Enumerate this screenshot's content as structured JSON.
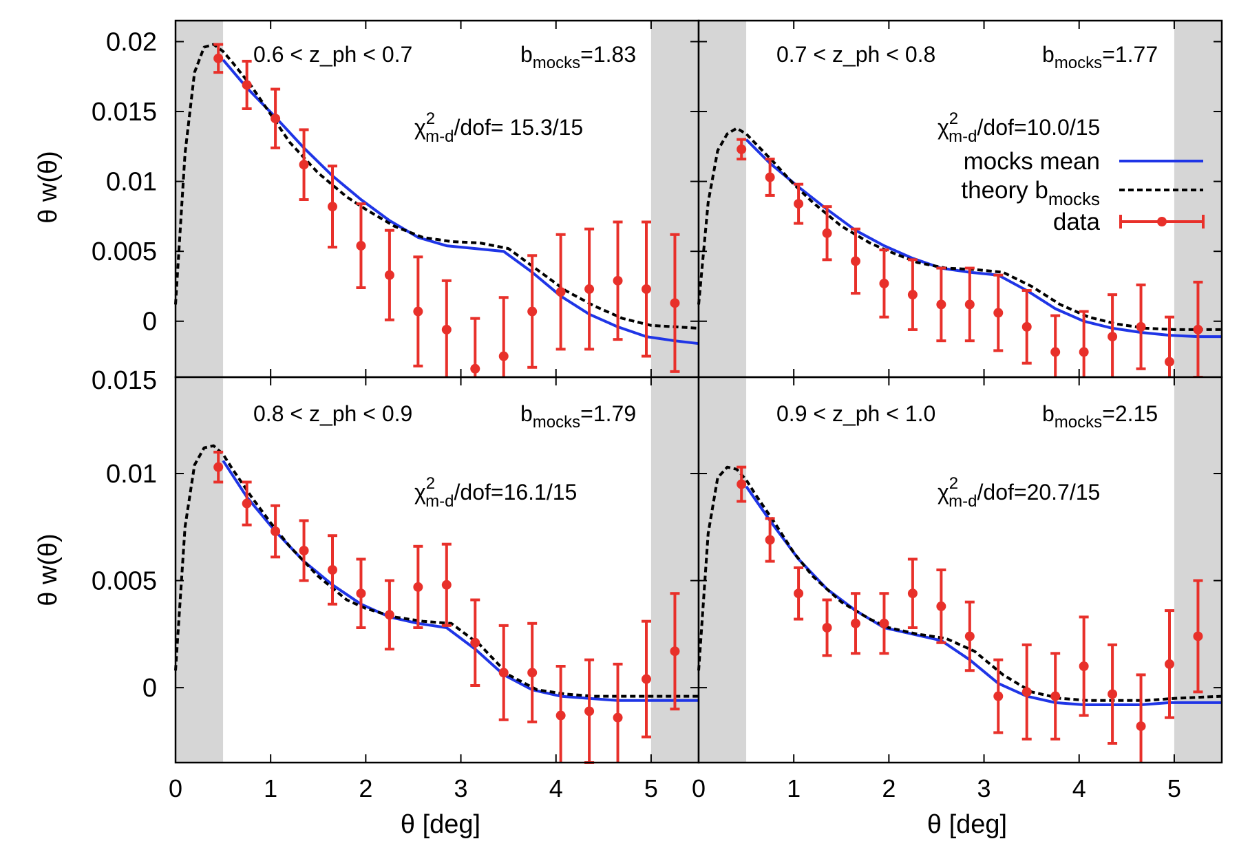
{
  "chart_data": [
    {
      "type": "line",
      "panel": "top-left",
      "redshift_bin": "0.6 < z_ph < 0.7",
      "annotations": {
        "bias_label": "b",
        "bias_sub": "mocks",
        "bias_value": "=1.83",
        "chi2_label": "χ",
        "chi2_sup": "2",
        "chi2_sub": "m-d",
        "chi2_value": "/dof= 15.3/15"
      },
      "xlim": [
        0,
        5.5
      ],
      "ylim": [
        -0.004,
        0.0215
      ],
      "x_ticks": [
        "0",
        "1",
        "2",
        "3",
        "4",
        "5"
      ],
      "y_ticks": [
        {
          "value": 0.02,
          "label": "0.02"
        },
        {
          "value": 0.015,
          "label": "0.015"
        },
        {
          "value": 0.01,
          "label": "0.01"
        },
        {
          "value": 0.005,
          "label": "0.005"
        },
        {
          "value": 0,
          "label": "0"
        }
      ],
      "shaded_regions": [
        [
          0,
          0.5
        ],
        [
          5,
          5.5
        ]
      ],
      "series": [
        {
          "name": "theory b_mocks",
          "style": "dashed-black",
          "x": [
            0.0,
            0.1,
            0.2,
            0.3,
            0.4,
            0.5,
            0.6,
            0.8,
            1.0,
            1.2,
            1.5,
            1.8,
            2.0,
            2.3,
            2.6,
            2.9,
            3.2,
            3.5,
            3.8,
            4.1,
            4.4,
            4.7,
            5.0,
            5.5
          ],
          "y": [
            0.0012,
            0.012,
            0.0178,
            0.0196,
            0.0198,
            0.0193,
            0.0185,
            0.0168,
            0.0148,
            0.0128,
            0.0106,
            0.0089,
            0.008,
            0.0068,
            0.006,
            0.0057,
            0.0056,
            0.0052,
            0.0037,
            0.0022,
            0.0011,
            0.0002,
            -0.0003,
            -0.0005
          ]
        },
        {
          "name": "mocks mean",
          "style": "solid-blue",
          "x": [
            0.5,
            0.75,
            1.05,
            1.35,
            1.65,
            1.95,
            2.25,
            2.55,
            2.85,
            3.15,
            3.45,
            3.75,
            4.05,
            4.35,
            4.65,
            4.95,
            5.25,
            5.5
          ],
          "y": [
            0.0187,
            0.0167,
            0.0146,
            0.0124,
            0.0104,
            0.0087,
            0.0072,
            0.006,
            0.0054,
            0.0052,
            0.005,
            0.0035,
            0.0018,
            0.0005,
            -0.0004,
            -0.0011,
            -0.0014,
            -0.0016
          ]
        },
        {
          "name": "data",
          "style": "red-points-errorbars",
          "x": [
            0.45,
            0.75,
            1.05,
            1.35,
            1.65,
            1.95,
            2.25,
            2.55,
            2.85,
            3.15,
            3.45,
            3.75,
            4.05,
            4.35,
            4.65,
            4.95,
            5.25
          ],
          "y": [
            0.0188,
            0.0169,
            0.0145,
            0.0112,
            0.0082,
            0.0054,
            0.0033,
            0.0007,
            -0.0006,
            -0.0034,
            -0.0025,
            0.0007,
            0.0021,
            0.0023,
            0.0029,
            0.0023,
            0.0013
          ],
          "err": [
            0.001,
            0.0017,
            0.0021,
            0.0025,
            0.0029,
            0.003,
            0.0032,
            0.0039,
            0.0035,
            0.0036,
            0.0042,
            0.004,
            0.0041,
            0.0043,
            0.0042,
            0.0048,
            0.0049
          ]
        }
      ]
    },
    {
      "type": "line",
      "panel": "top-right",
      "redshift_bin": "0.7 < z_ph < 0.8",
      "annotations": {
        "bias_label": "b",
        "bias_sub": "mocks",
        "bias_value": "=1.77",
        "chi2_label": "χ",
        "chi2_sup": "2",
        "chi2_sub": "m-d",
        "chi2_value": "/dof=10.0/15"
      },
      "xlim": [
        0,
        5.5
      ],
      "ylim": [
        -0.004,
        0.0215
      ],
      "x_ticks": [
        "0",
        "1",
        "2",
        "3",
        "4",
        "5"
      ],
      "shaded_regions": [
        [
          0,
          0.5
        ],
        [
          5,
          5.5
        ]
      ],
      "series": [
        {
          "name": "theory b_mocks",
          "style": "dashed-black",
          "x": [
            0.0,
            0.1,
            0.2,
            0.3,
            0.4,
            0.5,
            0.6,
            0.8,
            1.0,
            1.2,
            1.5,
            1.8,
            2.0,
            2.3,
            2.6,
            2.9,
            3.2,
            3.5,
            3.8,
            4.1,
            4.4,
            4.7,
            5.0,
            5.5
          ],
          "y": [
            0.0012,
            0.0085,
            0.0122,
            0.0134,
            0.0138,
            0.0134,
            0.0127,
            0.0113,
            0.0098,
            0.0085,
            0.0068,
            0.0056,
            0.005,
            0.0042,
            0.0038,
            0.0037,
            0.0035,
            0.0025,
            0.0012,
            0.0003,
            -0.0002,
            -0.0005,
            -0.0006,
            -0.0006
          ]
        },
        {
          "name": "mocks mean",
          "style": "solid-blue",
          "x": [
            0.5,
            0.75,
            1.05,
            1.35,
            1.65,
            1.95,
            2.25,
            2.55,
            2.85,
            3.15,
            3.45,
            3.75,
            4.05,
            4.35,
            4.65,
            4.95,
            5.25,
            5.5
          ],
          "y": [
            0.013,
            0.0113,
            0.0096,
            0.008,
            0.0065,
            0.0054,
            0.0045,
            0.0038,
            0.0035,
            0.0033,
            0.0022,
            0.0009,
            0.0,
            -0.0005,
            -0.0008,
            -0.001,
            -0.0011,
            -0.0011
          ]
        },
        {
          "name": "data",
          "style": "red-points-errorbars",
          "x": [
            0.45,
            0.75,
            1.05,
            1.35,
            1.65,
            1.95,
            2.25,
            2.55,
            2.85,
            3.15,
            3.45,
            3.75,
            4.05,
            4.35,
            4.65,
            4.95,
            5.25
          ],
          "y": [
            0.0123,
            0.0103,
            0.0084,
            0.0063,
            0.0043,
            0.0027,
            0.0019,
            0.0012,
            0.0012,
            0.0006,
            -0.0004,
            -0.0022,
            -0.0022,
            -0.0011,
            -0.0004,
            -0.0029,
            -0.0006
          ],
          "err": [
            0.0007,
            0.0013,
            0.0014,
            0.0019,
            0.0023,
            0.0024,
            0.0025,
            0.0026,
            0.0026,
            0.0027,
            0.0026,
            0.0026,
            0.0029,
            0.003,
            0.003,
            0.0032,
            0.0034
          ]
        }
      ]
    },
    {
      "type": "line",
      "panel": "bottom-left",
      "redshift_bin": "0.8 < z_ph < 0.9",
      "annotations": {
        "bias_label": "b",
        "bias_sub": "mocks",
        "bias_value": "=1.79",
        "chi2_label": "χ",
        "chi2_sup": "2",
        "chi2_sub": "m-d",
        "chi2_value": "/dof=16.1/15"
      },
      "xlim": [
        0,
        5.5
      ],
      "ylim": [
        -0.0035,
        0.0145
      ],
      "x_ticks": [
        "0",
        "1",
        "2",
        "3",
        "4",
        "5"
      ],
      "y_ticks": [
        {
          "value": 0.01,
          "label": "0.01"
        },
        {
          "value": 0.005,
          "label": "0.005"
        },
        {
          "value": 0,
          "label": "0"
        }
      ],
      "shaded_regions": [
        [
          0,
          0.5
        ],
        [
          5,
          5.5
        ]
      ],
      "series": [
        {
          "name": "theory b_mocks",
          "style": "dashed-black",
          "x": [
            0.0,
            0.1,
            0.2,
            0.3,
            0.4,
            0.5,
            0.6,
            0.8,
            1.0,
            1.2,
            1.5,
            1.8,
            2.0,
            2.3,
            2.6,
            2.9,
            3.2,
            3.5,
            3.8,
            4.1,
            4.4,
            4.7,
            5.0,
            5.5
          ],
          "y": [
            0.0008,
            0.0075,
            0.0104,
            0.0112,
            0.0113,
            0.0109,
            0.0102,
            0.0089,
            0.0077,
            0.0066,
            0.0052,
            0.0041,
            0.0037,
            0.0033,
            0.0031,
            0.003,
            0.002,
            0.0006,
            -0.0001,
            -0.0003,
            -0.0004,
            -0.0004,
            -0.0004,
            -0.0004
          ]
        },
        {
          "name": "mocks mean",
          "style": "solid-blue",
          "x": [
            0.5,
            0.75,
            1.05,
            1.35,
            1.65,
            1.95,
            2.25,
            2.55,
            2.85,
            3.15,
            3.45,
            3.75,
            4.05,
            4.35,
            4.65,
            4.95,
            5.25,
            5.5
          ],
          "y": [
            0.0106,
            0.0089,
            0.0073,
            0.0059,
            0.0048,
            0.0039,
            0.0033,
            0.003,
            0.0028,
            0.0018,
            0.0006,
            -0.0001,
            -0.0004,
            -0.0005,
            -0.0006,
            -0.0006,
            -0.0006,
            -0.0006
          ]
        },
        {
          "name": "data",
          "style": "red-points-errorbars",
          "x": [
            0.45,
            0.75,
            1.05,
            1.35,
            1.65,
            1.95,
            2.25,
            2.55,
            2.85,
            3.15,
            3.45,
            3.75,
            4.05,
            4.35,
            4.65,
            4.95,
            5.25
          ],
          "y": [
            0.0103,
            0.0086,
            0.0073,
            0.0064,
            0.0055,
            0.0044,
            0.0034,
            0.0047,
            0.0048,
            0.0021,
            0.0007,
            0.0007,
            -0.0013,
            -0.0011,
            -0.0014,
            0.0004,
            0.0017
          ],
          "err": [
            0.0007,
            0.001,
            0.0012,
            0.0014,
            0.0016,
            0.0016,
            0.0016,
            0.0019,
            0.0019,
            0.002,
            0.0022,
            0.0023,
            0.0023,
            0.0024,
            0.0025,
            0.0027,
            0.0027
          ]
        }
      ]
    },
    {
      "type": "line",
      "panel": "bottom-right",
      "redshift_bin": "0.9 < z_ph < 1.0",
      "annotations": {
        "bias_label": "b",
        "bias_sub": "mocks",
        "bias_value": "=2.15",
        "chi2_label": "χ",
        "chi2_sup": "2",
        "chi2_sub": "m-d",
        "chi2_value": "/dof=20.7/15"
      },
      "xlim": [
        0,
        5.5
      ],
      "ylim": [
        -0.0035,
        0.0145
      ],
      "x_ticks": [
        "0",
        "1",
        "2",
        "3",
        "4",
        "5"
      ],
      "shaded_regions": [
        [
          0,
          0.5
        ],
        [
          5,
          5.5
        ]
      ],
      "series": [
        {
          "name": "theory b_mocks",
          "style": "dashed-black",
          "x": [
            0.0,
            0.1,
            0.2,
            0.3,
            0.4,
            0.5,
            0.6,
            0.8,
            1.0,
            1.2,
            1.5,
            1.8,
            2.0,
            2.3,
            2.6,
            2.9,
            3.2,
            3.5,
            3.8,
            4.1,
            4.4,
            4.7,
            5.0,
            5.5
          ],
          "y": [
            0.0008,
            0.0072,
            0.0098,
            0.0103,
            0.0102,
            0.0097,
            0.009,
            0.0077,
            0.0063,
            0.0052,
            0.004,
            0.0032,
            0.0028,
            0.0025,
            0.0023,
            0.0017,
            0.0006,
            -0.0002,
            -0.0005,
            -0.0006,
            -0.0006,
            -0.0006,
            -0.0005,
            -0.0004
          ]
        },
        {
          "name": "mocks mean",
          "style": "solid-blue",
          "x": [
            0.5,
            0.75,
            1.05,
            1.35,
            1.65,
            1.95,
            2.25,
            2.55,
            2.85,
            3.15,
            3.45,
            3.75,
            4.05,
            4.35,
            4.65,
            4.95,
            5.25,
            5.5
          ],
          "y": [
            0.0094,
            0.0078,
            0.006,
            0.0046,
            0.0036,
            0.0028,
            0.0025,
            0.0022,
            0.0013,
            0.0002,
            -0.0004,
            -0.0007,
            -0.0008,
            -0.0008,
            -0.0008,
            -0.0007,
            -0.0007,
            -0.0007
          ]
        },
        {
          "name": "data",
          "style": "red-points-errorbars",
          "x": [
            0.45,
            0.75,
            1.05,
            1.35,
            1.65,
            1.95,
            2.25,
            2.55,
            2.85,
            3.15,
            3.45,
            3.75,
            4.05,
            4.35,
            4.65,
            4.95,
            5.25
          ],
          "y": [
            0.0095,
            0.0069,
            0.0044,
            0.0028,
            0.003,
            0.003,
            0.0044,
            0.0038,
            0.0024,
            -0.0004,
            -0.0002,
            -0.0004,
            0.001,
            -0.0003,
            -0.0018,
            0.0011,
            0.0024
          ],
          "err": [
            0.0008,
            0.001,
            0.0012,
            0.0013,
            0.0014,
            0.0014,
            0.0016,
            0.0017,
            0.0016,
            0.0017,
            0.0022,
            0.002,
            0.0023,
            0.0023,
            0.0024,
            0.0025,
            0.0026
          ]
        }
      ]
    }
  ],
  "shared_axes": {
    "xlabel": "θ [deg]",
    "ylabel": "θ w(θ)",
    "stray_tick_label": "0.015"
  },
  "legend": {
    "placement": "top-right panel, right side",
    "entries": [
      {
        "label": "mocks mean",
        "label_sub": "",
        "style": "solid-blue"
      },
      {
        "label": "theory b",
        "label_sub": "mocks",
        "style": "dashed-black"
      },
      {
        "label": "data",
        "label_sub": "",
        "style": "red-points-errorbars"
      }
    ]
  },
  "colors": {
    "mocks_mean": "#1f35e6",
    "theory": "#000000",
    "data": "#e8302a",
    "shade": "#d6d6d6",
    "frame": "#000000"
  }
}
